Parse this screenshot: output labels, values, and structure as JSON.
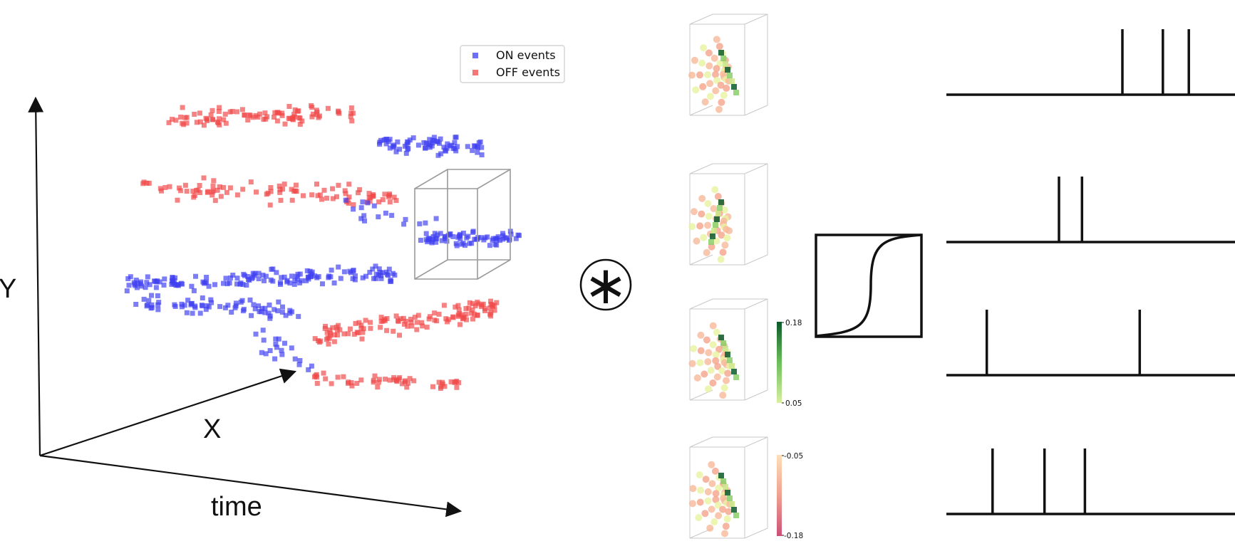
{
  "axes": {
    "y_label": "Y",
    "x_label": "X",
    "time_label": "time"
  },
  "legend": {
    "position": "top-right of event cloud",
    "items": [
      {
        "label": "ON events",
        "color": "#3f3ff0"
      },
      {
        "label": "OFF events",
        "color": "#f04848"
      }
    ]
  },
  "convolution": {
    "symbol": "∗"
  },
  "kernels": {
    "count": 4,
    "positive_colorbar": {
      "top_label": "0.18",
      "bottom_label": "0.05",
      "colors": [
        "#0b5a2a",
        "#d8f0a0"
      ]
    },
    "negative_colorbar": {
      "top_label": "-0.05",
      "bottom_label": "-0.18",
      "colors": [
        "#fde0b8",
        "#cc5078"
      ]
    }
  },
  "activation": {
    "shape": "sigmoid"
  },
  "spike_trains": [
    {
      "spike_times": [
        0.61,
        0.75,
        0.84
      ]
    },
    {
      "spike_times": [
        0.39,
        0.47
      ]
    },
    {
      "spike_times": [
        0.14,
        0.67
      ]
    },
    {
      "spike_times": [
        0.16,
        0.34,
        0.48
      ]
    }
  ],
  "colors": {
    "on_events": "#3f3ff0",
    "off_events": "#f04848",
    "axis_lines": "#111111",
    "box_outline": "#9a9a9a"
  }
}
